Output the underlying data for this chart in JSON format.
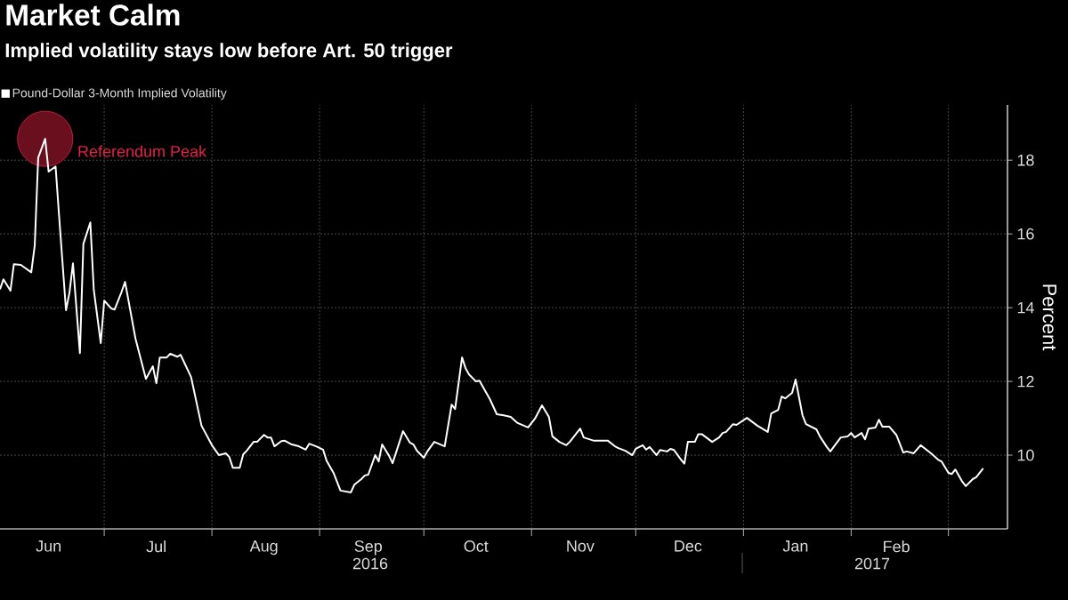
{
  "chart_data": {
    "type": "line",
    "title": "Market Calm",
    "subtitle": "Implied volatility stays low before Art. 50 trigger",
    "ylabel": "Percent",
    "xlim": [
      "2016-06-01",
      "2017-03-18"
    ],
    "ylim": [
      8,
      19.5
    ],
    "yticks": [
      10,
      12,
      14,
      16,
      18
    ],
    "xticks": [
      {
        "value": "2016-06-15",
        "label": "Jun"
      },
      {
        "value": "2016-07-01",
        "label": null
      },
      {
        "value": "2016-07-16",
        "label": "Jul"
      },
      {
        "value": "2016-08-01",
        "label": null
      },
      {
        "value": "2016-08-16",
        "label": "Aug"
      },
      {
        "value": "2016-09-01",
        "label": null
      },
      {
        "value": "2016-09-15",
        "label": "Sep"
      },
      {
        "value": "2016-10-01",
        "label": null
      },
      {
        "value": "2016-10-16",
        "label": "Oct"
      },
      {
        "value": "2016-11-01",
        "label": null
      },
      {
        "value": "2016-11-15",
        "label": "Nov"
      },
      {
        "value": "2016-12-01",
        "label": null
      },
      {
        "value": "2016-12-16",
        "label": "Dec"
      },
      {
        "value": "2017-01-01",
        "label": null
      },
      {
        "value": "2017-01-16",
        "label": "Jan"
      },
      {
        "value": "2017-02-01",
        "label": null
      },
      {
        "value": "2017-02-14",
        "label": "Feb"
      },
      {
        "value": "2017-03-01",
        "label": null
      }
    ],
    "grid": true,
    "legend": "top left",
    "marker": "none",
    "line_style": "solid",
    "annotations": [
      {
        "text": "Referendum Peak",
        "x": "2016-06-14",
        "y": 18.58
      },
      "2016",
      "2017"
    ],
    "series": [
      {
        "type": "scatter",
        "color": "#6a0f1e",
        "marker": "circle",
        "x": [
          "2016-06-14"
        ],
        "values": [
          18.58
        ]
      },
      {
        "name": "Pound-Dollar 3-Month Implied Volatility",
        "color": "#ffffff",
        "x": [
          "2016-06-01",
          "2016-06-02",
          "2016-06-04",
          "2016-06-05",
          "2016-06-07",
          "2016-06-10",
          "2016-06-11",
          "2016-06-12",
          "2016-06-14",
          "2016-06-15",
          "2016-06-17",
          "2016-06-18",
          "2016-06-20",
          "2016-06-21",
          "2016-06-22",
          "2016-06-24",
          "2016-06-25",
          "2016-06-27",
          "2016-06-28",
          "2016-06-30",
          "2016-07-01",
          "2016-07-03",
          "2016-07-04",
          "2016-07-06",
          "2016-07-07",
          "2016-07-10",
          "2016-07-13",
          "2016-07-15",
          "2016-07-16",
          "2016-07-17",
          "2016-07-19",
          "2016-07-20",
          "2016-07-22",
          "2016-07-23",
          "2016-07-26",
          "2016-07-29",
          "2016-08-01",
          "2016-08-03",
          "2016-08-05",
          "2016-08-06",
          "2016-08-07",
          "2016-08-09",
          "2016-08-10",
          "2016-08-11",
          "2016-08-13",
          "2016-08-14",
          "2016-08-16",
          "2016-08-17",
          "2016-08-18",
          "2016-08-19",
          "2016-08-21",
          "2016-08-22",
          "2016-08-24",
          "2016-08-26",
          "2016-08-28",
          "2016-08-29",
          "2016-08-31",
          "2016-09-02",
          "2016-09-03",
          "2016-09-05",
          "2016-09-07",
          "2016-09-10",
          "2016-09-11",
          "2016-09-13",
          "2016-09-14",
          "2016-09-15",
          "2016-09-17",
          "2016-09-18",
          "2016-09-19",
          "2016-09-21",
          "2016-09-22",
          "2016-09-25",
          "2016-09-27",
          "2016-09-28",
          "2016-09-29",
          "2016-10-01",
          "2016-10-02",
          "2016-10-04",
          "2016-10-07",
          "2016-10-09",
          "2016-10-10",
          "2016-10-12",
          "2016-10-13",
          "2016-10-14",
          "2016-10-16",
          "2016-10-17",
          "2016-10-20",
          "2016-10-22",
          "2016-10-24",
          "2016-10-26",
          "2016-10-28",
          "2016-10-31",
          "2016-11-01",
          "2016-11-02",
          "2016-11-04",
          "2016-11-06",
          "2016-11-07",
          "2016-11-09",
          "2016-11-11",
          "2016-11-12",
          "2016-11-15",
          "2016-11-16",
          "2016-11-19",
          "2016-11-21",
          "2016-11-23",
          "2016-11-25",
          "2016-11-26",
          "2016-11-28",
          "2016-11-30",
          "2016-12-01",
          "2016-12-03",
          "2016-12-04",
          "2016-12-05",
          "2016-12-07",
          "2016-12-08",
          "2016-12-10",
          "2016-12-11",
          "2016-12-12",
          "2016-12-14",
          "2016-12-15",
          "2016-12-16",
          "2016-12-18",
          "2016-12-19",
          "2016-12-20",
          "2016-12-23",
          "2016-12-25",
          "2016-12-26",
          "2016-12-27",
          "2016-12-29",
          "2016-12-30",
          "2017-01-02",
          "2017-01-05",
          "2017-01-08",
          "2017-01-09",
          "2017-01-11",
          "2017-01-12",
          "2017-01-13",
          "2017-01-15",
          "2017-01-16",
          "2017-01-18",
          "2017-01-19",
          "2017-01-22",
          "2017-01-23",
          "2017-01-25",
          "2017-01-26",
          "2017-01-29",
          "2017-01-31",
          "2017-02-01",
          "2017-02-02",
          "2017-02-04",
          "2017-02-05",
          "2017-02-06",
          "2017-02-08",
          "2017-02-09",
          "2017-02-10",
          "2017-02-12",
          "2017-02-14",
          "2017-02-16",
          "2017-02-17",
          "2017-02-19",
          "2017-02-21",
          "2017-02-24",
          "2017-02-26",
          "2017-02-27",
          "2017-03-01",
          "2017-03-02",
          "2017-03-03",
          "2017-03-05",
          "2017-03-06",
          "2017-03-08",
          "2017-03-09",
          "2017-03-11"
        ],
        "values": [
          14.5,
          14.77,
          14.46,
          15.18,
          15.16,
          14.96,
          15.69,
          18.07,
          18.58,
          17.69,
          17.83,
          16.5,
          13.93,
          14.41,
          15.2,
          12.77,
          15.73,
          16.31,
          14.48,
          13.04,
          14.19,
          13.98,
          13.95,
          14.43,
          14.7,
          13.16,
          12.07,
          12.41,
          11.95,
          12.65,
          12.65,
          12.75,
          12.67,
          12.72,
          12.12,
          10.8,
          10.27,
          10.0,
          10.05,
          9.95,
          9.66,
          9.66,
          10.02,
          10.12,
          10.36,
          10.36,
          10.55,
          10.48,
          10.48,
          10.24,
          10.38,
          10.39,
          10.29,
          10.24,
          10.15,
          10.31,
          10.24,
          10.15,
          9.85,
          9.52,
          9.04,
          8.99,
          9.2,
          9.35,
          9.45,
          9.47,
          10.0,
          9.83,
          10.29,
          9.98,
          9.78,
          10.65,
          10.34,
          10.29,
          10.12,
          9.93,
          10.1,
          10.36,
          10.24,
          11.37,
          11.25,
          12.65,
          12.36,
          12.19,
          12.0,
          12.02,
          11.52,
          11.11,
          11.08,
          11.04,
          10.87,
          10.75,
          10.87,
          10.99,
          11.35,
          11.04,
          10.51,
          10.36,
          10.27,
          10.36,
          10.72,
          10.48,
          10.39,
          10.39,
          10.39,
          10.24,
          10.19,
          10.12,
          10.0,
          10.17,
          10.27,
          10.15,
          10.22,
          10.0,
          10.14,
          10.1,
          10.17,
          10.14,
          9.88,
          9.77,
          10.36,
          10.36,
          10.57,
          10.57,
          10.36,
          10.48,
          10.6,
          10.63,
          10.84,
          10.82,
          11.01,
          10.8,
          10.63,
          11.13,
          11.23,
          11.59,
          11.54,
          11.69,
          12.05,
          11.08,
          10.84,
          10.7,
          10.51,
          10.22,
          10.1,
          10.48,
          10.51,
          10.6,
          10.48,
          10.6,
          10.43,
          10.72,
          10.75,
          10.96,
          10.77,
          10.77,
          10.55,
          10.07,
          10.1,
          10.05,
          10.27,
          10.05,
          9.88,
          9.83,
          9.52,
          9.49,
          9.61,
          9.28,
          9.16,
          9.35,
          9.4,
          9.64
        ]
      }
    ]
  }
}
